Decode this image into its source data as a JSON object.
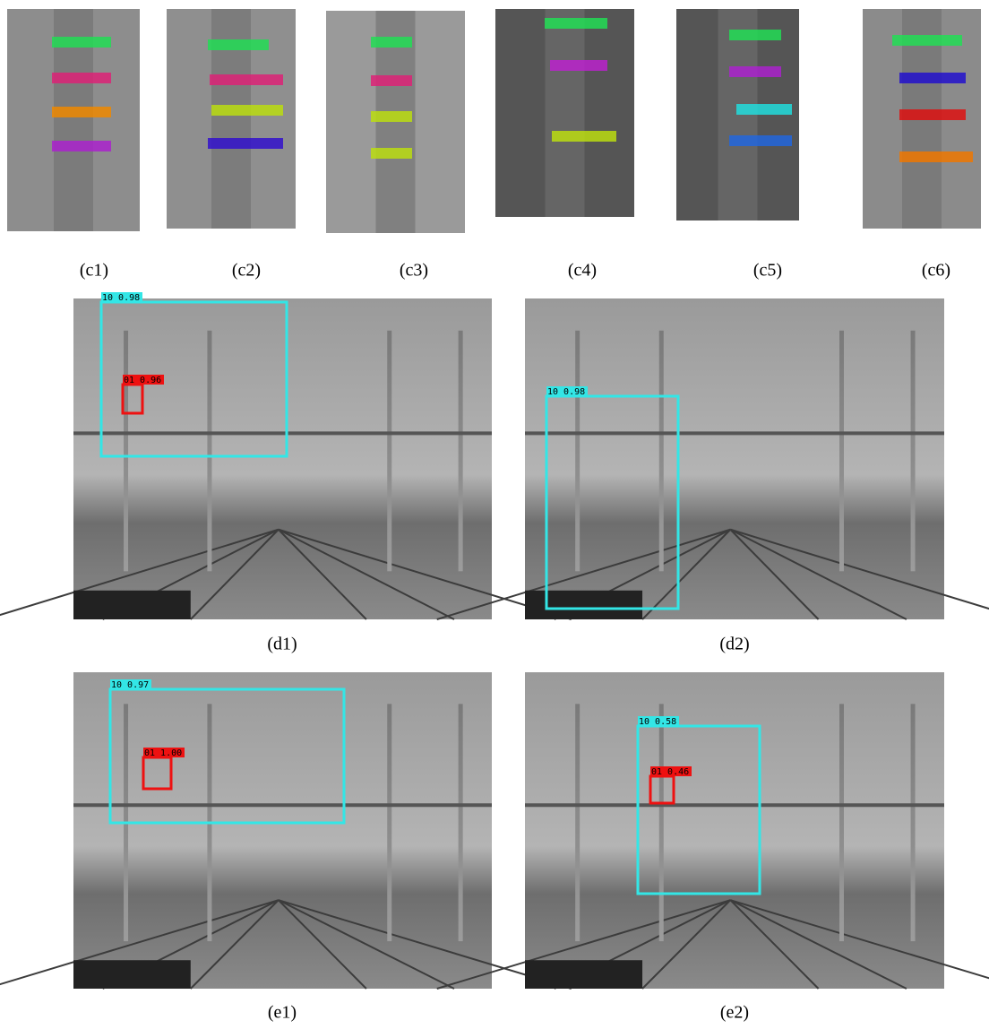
{
  "top_panels": [
    {
      "caption": "(c1)"
    },
    {
      "caption": "(c2)"
    },
    {
      "caption": "(c3)"
    },
    {
      "caption": "(c4)"
    },
    {
      "caption": "(c5)"
    },
    {
      "caption": "(c6)"
    }
  ],
  "scenes": [
    {
      "caption": "(d1)",
      "detections": [
        {
          "label": "10 0.98"
        },
        {
          "label": "01 0.96"
        }
      ]
    },
    {
      "caption": "(d2)",
      "detections": [
        {
          "label": "10 0.98"
        }
      ]
    },
    {
      "caption": "(e1)",
      "detections": [
        {
          "label": "10 0.97"
        },
        {
          "label": "01 1.00"
        }
      ]
    },
    {
      "caption": "(e2)",
      "detections": [
        {
          "label": "10 0.58"
        },
        {
          "label": "01 0.46"
        }
      ]
    }
  ]
}
